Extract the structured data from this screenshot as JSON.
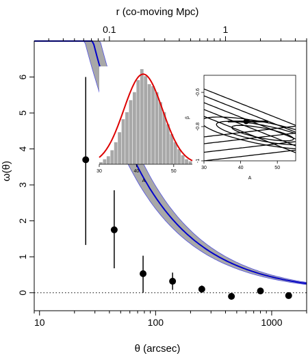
{
  "chart_data": {
    "type": "scatter",
    "title": "",
    "xlabel": "θ (arcsec)",
    "ylabel": "ω(θ)",
    "top_axis_label": "r (co-moving Mpc)",
    "x_scale": "log",
    "xlim": [
      9,
      2000
    ],
    "ylim": [
      -0.5,
      7
    ],
    "x_ticks": [
      10,
      100,
      1000
    ],
    "x_tick_labels": [
      "10",
      "100",
      "1000"
    ],
    "y_ticks": [
      0,
      1,
      2,
      3,
      4,
      5,
      6
    ],
    "y_tick_labels": [
      "0",
      "1",
      "2",
      "3",
      "4",
      "5",
      "6"
    ],
    "top_ticks": [
      0.1,
      1
    ],
    "top_tick_labels": [
      "0.1",
      "1"
    ],
    "points": {
      "x": [
        25,
        44,
        78,
        140,
        250,
        450,
        800,
        1400
      ],
      "y": [
        3.7,
        1.75,
        0.53,
        0.32,
        0.1,
        -0.1,
        0.05,
        -0.08
      ],
      "yerr_low": [
        2.37,
        1.07,
        0.53,
        0.24,
        0.1,
        0.0,
        0.0,
        0.0
      ],
      "yerr_high": [
        2.3,
        1.1,
        0.5,
        0.24,
        0.1,
        0.0,
        0.0,
        0.0
      ]
    },
    "fit": {
      "color": "#0000cc",
      "A": 41,
      "beta": -0.78,
      "band_color": "#a8a8a8",
      "band_edge_color": "#5050e0"
    },
    "zero_line": {
      "y": 0,
      "style": "dotted"
    },
    "insets": [
      {
        "type": "histogram",
        "xlabel": "A",
        "xlim": [
          30,
          55
        ],
        "x_ticks": [
          30,
          40,
          50
        ],
        "x_tick_labels": [
          "30",
          "40",
          "50"
        ],
        "bins_x": [
          30.5,
          31.5,
          32.5,
          33.5,
          34.5,
          35.5,
          36.5,
          37.5,
          38.5,
          39.5,
          40.5,
          41.5,
          42.5,
          43.5,
          44.5,
          45.5,
          46.5,
          47.5,
          48.5,
          49.5,
          50.5,
          51.5,
          52.5,
          53.5,
          54.5
        ],
        "counts": [
          2,
          5,
          8,
          14,
          22,
          32,
          45,
          52,
          64,
          72,
          84,
          95,
          88,
          80,
          78,
          72,
          62,
          52,
          40,
          30,
          22,
          15,
          9,
          5,
          3
        ],
        "fit_color": "#dd0000",
        "bar_color": "#a8a8a8"
      },
      {
        "type": "contour",
        "xlabel": "A",
        "ylabel": "β",
        "xlim": [
          30,
          55
        ],
        "ylim": [
          -1.0,
          -0.5
        ],
        "x_ticks": [
          30,
          40,
          50
        ],
        "x_tick_labels": [
          "30",
          "40",
          "50"
        ],
        "y_ticks": [
          -1,
          -0.8,
          -0.6
        ],
        "y_tick_labels": [
          "-1",
          "-0.8",
          "-0.6"
        ],
        "best_fit": {
          "A": 41.5,
          "beta": -0.77,
          "A_err_low": 5,
          "A_err_high": 6
        }
      }
    ]
  }
}
